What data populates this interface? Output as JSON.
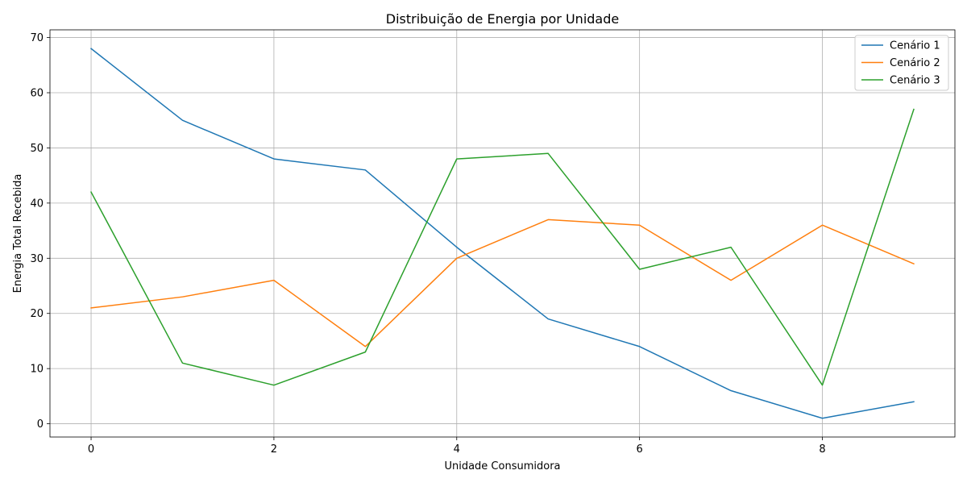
{
  "chart_data": {
    "type": "line",
    "title": "Distribuição de Energia por Unidade",
    "xlabel": "Unidade Consumidora",
    "ylabel": "Energia Total Recebida",
    "x": [
      0,
      1,
      2,
      3,
      4,
      5,
      6,
      7,
      8,
      9
    ],
    "xlim": [
      -0.45,
      9.45
    ],
    "ylim": [
      -2.4,
      71.4
    ],
    "xticks": [
      0,
      2,
      4,
      6,
      8
    ],
    "yticks": [
      0,
      10,
      20,
      30,
      40,
      50,
      60,
      70
    ],
    "grid": true,
    "legend_position": "top-right",
    "series": [
      {
        "name": "Cenário 1",
        "color": "#1f77b4",
        "values": [
          68,
          55,
          48,
          46,
          32,
          19,
          14,
          6,
          1,
          4
        ]
      },
      {
        "name": "Cenário 2",
        "color": "#ff7f0e",
        "values": [
          21,
          23,
          26,
          14,
          30,
          37,
          36,
          26,
          36,
          29
        ]
      },
      {
        "name": "Cenário 3",
        "color": "#2ca02c",
        "values": [
          42,
          11,
          7,
          13,
          48,
          49,
          28,
          32,
          7,
          57
        ]
      }
    ]
  }
}
